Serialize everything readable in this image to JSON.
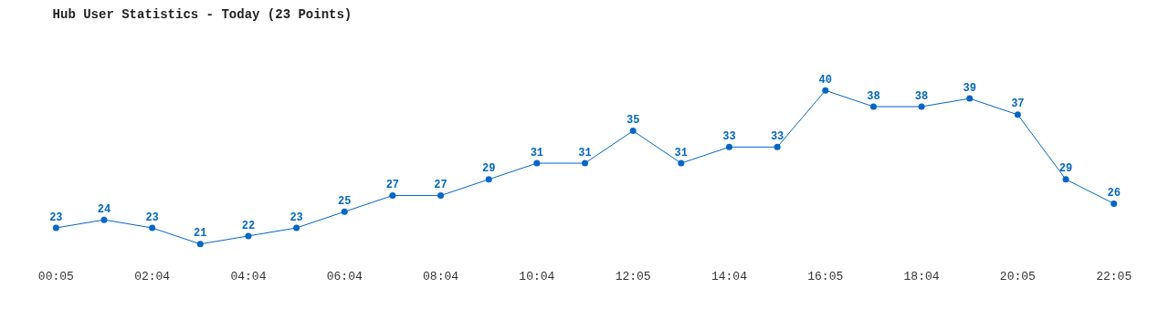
{
  "chart_data": {
    "type": "line",
    "title": "Hub User Statistics - Today (23 Points)",
    "categories": [
      "00:05",
      null,
      "02:04",
      null,
      "04:04",
      null,
      "06:04",
      null,
      "08:04",
      null,
      "10:04",
      null,
      "12:05",
      null,
      "14:04",
      null,
      "16:05",
      null,
      "18:04",
      null,
      "20:05",
      null,
      "22:05"
    ],
    "series": [
      {
        "color": "#0066cc",
        "values": [
          23,
          24,
          23,
          21,
          22,
          23,
          25,
          27,
          27,
          29,
          31,
          31,
          35,
          31,
          33,
          33,
          40,
          38,
          38,
          39,
          37,
          29,
          26
        ]
      }
    ],
    "data_labels": true,
    "marker": "circle",
    "line_style": "solid",
    "grid": false,
    "legend": false
  }
}
